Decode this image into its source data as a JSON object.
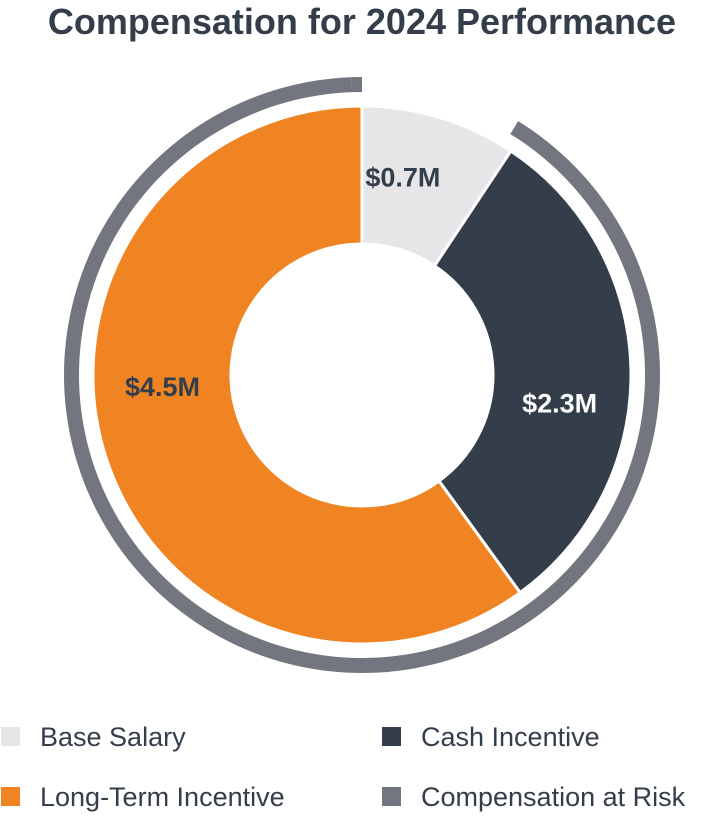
{
  "chart_data": {
    "type": "pie",
    "title": "Compensation for 2024 Performance",
    "unit": "$M",
    "slices": [
      {
        "name": "Base Salary",
        "value": 0.7,
        "label": "$0.7M",
        "color": "#e6e6e8",
        "label_color": "#343e4a"
      },
      {
        "name": "Cash Incentive",
        "value": 2.3,
        "label": "$2.3M",
        "color": "#343e4a",
        "label_color": "#ffffff"
      },
      {
        "name": "Long-Term Incentive",
        "value": 4.5,
        "label": "$4.5M",
        "color": "#f08422",
        "label_color": "#343e4a"
      }
    ],
    "outer_ring": {
      "name": "Compensation at Risk",
      "color": "#73767e",
      "covers": [
        "Cash Incentive",
        "Long-Term Incentive"
      ]
    },
    "legend": [
      {
        "label": "Base Salary",
        "color": "#e6e6e8"
      },
      {
        "label": "Cash Incentive",
        "color": "#343e4a"
      },
      {
        "label": "Long-Term Incentive",
        "color": "#f08422"
      },
      {
        "label": "Compensation at Risk",
        "color": "#73767e"
      }
    ],
    "legend_position": "bottom"
  }
}
